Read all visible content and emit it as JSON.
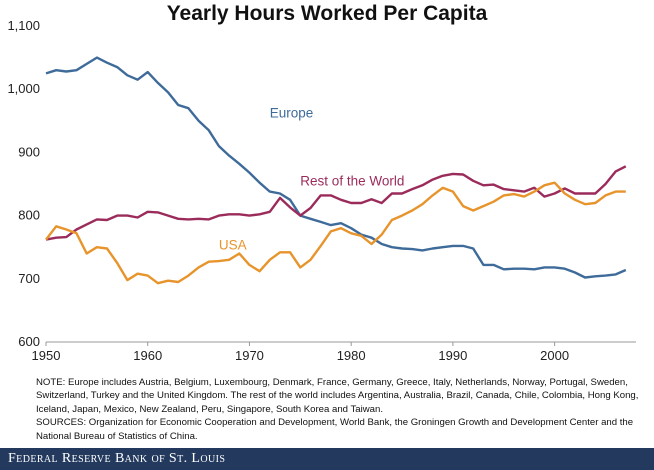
{
  "chart_data": {
    "type": "line",
    "title": "Yearly Hours Worked Per Capita",
    "xlabel": "",
    "ylabel": "",
    "xlim": [
      1950,
      2008
    ],
    "ylim": [
      600,
      1100
    ],
    "x_ticks": [
      "1950",
      "1960",
      "1970",
      "1980",
      "1990",
      "2000"
    ],
    "x_tick_values": [
      1950,
      1960,
      1970,
      1980,
      1990,
      2000
    ],
    "y_ticks": [
      "600",
      "700",
      "800",
      "900",
      "1,000",
      "1,100"
    ],
    "y_tick_values": [
      600,
      700,
      800,
      900,
      1000,
      1100
    ],
    "grid": false,
    "legend": "inline labels",
    "x": [
      1950,
      1951,
      1952,
      1953,
      1954,
      1955,
      1956,
      1957,
      1958,
      1959,
      1960,
      1961,
      1962,
      1963,
      1964,
      1965,
      1966,
      1967,
      1968,
      1969,
      1970,
      1971,
      1972,
      1973,
      1974,
      1975,
      1976,
      1977,
      1978,
      1979,
      1980,
      1981,
      1982,
      1983,
      1984,
      1985,
      1986,
      1987,
      1988,
      1989,
      1990,
      1991,
      1992,
      1993,
      1994,
      1995,
      1996,
      1997,
      1998,
      1999,
      2000,
      2001,
      2002,
      2003,
      2004,
      2005,
      2006,
      2007
    ],
    "series": [
      {
        "name": "Europe",
        "color": "#3e6b9a",
        "values": [
          1025,
          1030,
          1028,
          1030,
          1040,
          1050,
          1042,
          1035,
          1022,
          1015,
          1027,
          1010,
          995,
          975,
          970,
          950,
          935,
          910,
          895,
          882,
          868,
          852,
          838,
          835,
          825,
          800,
          795,
          790,
          785,
          788,
          780,
          770,
          765,
          755,
          750,
          748,
          747,
          745,
          748,
          750,
          752,
          752,
          748,
          722,
          722,
          715,
          716,
          716,
          715,
          718,
          718,
          716,
          710,
          702,
          704,
          705,
          707,
          714
        ],
        "label_position": "upper-right of line"
      },
      {
        "name": "Rest of the World",
        "color": "#9b2b5b",
        "values": [
          762,
          765,
          766,
          778,
          786,
          794,
          793,
          800,
          800,
          797,
          806,
          805,
          800,
          795,
          794,
          795,
          794,
          800,
          802,
          802,
          800,
          802,
          806,
          828,
          813,
          800,
          812,
          832,
          832,
          825,
          820,
          820,
          826,
          820,
          835,
          835,
          842,
          848,
          857,
          863,
          866,
          865,
          855,
          848,
          849,
          842,
          840,
          838,
          844,
          830,
          835,
          843,
          835,
          835,
          835,
          850,
          870,
          878
        ],
        "label_position": "above line near 1980"
      },
      {
        "name": "USA",
        "color": "#e8942c",
        "values": [
          762,
          783,
          778,
          772,
          740,
          750,
          748,
          725,
          698,
          708,
          705,
          693,
          697,
          695,
          705,
          718,
          727,
          728,
          730,
          740,
          722,
          712,
          730,
          742,
          742,
          718,
          730,
          752,
          775,
          780,
          772,
          768,
          755,
          770,
          793,
          800,
          808,
          818,
          832,
          844,
          838,
          815,
          808,
          815,
          822,
          832,
          834,
          830,
          838,
          848,
          852,
          835,
          825,
          818,
          820,
          832,
          838,
          838
        ],
        "label_position": "below line near 1970"
      }
    ]
  },
  "notes": {
    "note": "NOTE: Europe includes Austria, Belgium, Luxembourg, Denmark, France, Germany, Greece, Italy, Netherlands, Norway, Portugal, Sweden, Switzerland, Turkey and the United Kingdom. The rest of the world includes Argentina, Australia, Brazil, Canada, Chile, Colombia, Hong Kong, Iceland, Japan, Mexico, New Zealand, Peru, Singapore, South Korea and Taiwan.",
    "sources": "SOURCES: Organization for Economic Cooperation and Development, World Bank, the Groningen Growth and Development Center and the National Bureau of Statistics of China."
  },
  "footer": {
    "text": "Federal Reserve Bank of St. Louis",
    "background": "#233a5e"
  }
}
